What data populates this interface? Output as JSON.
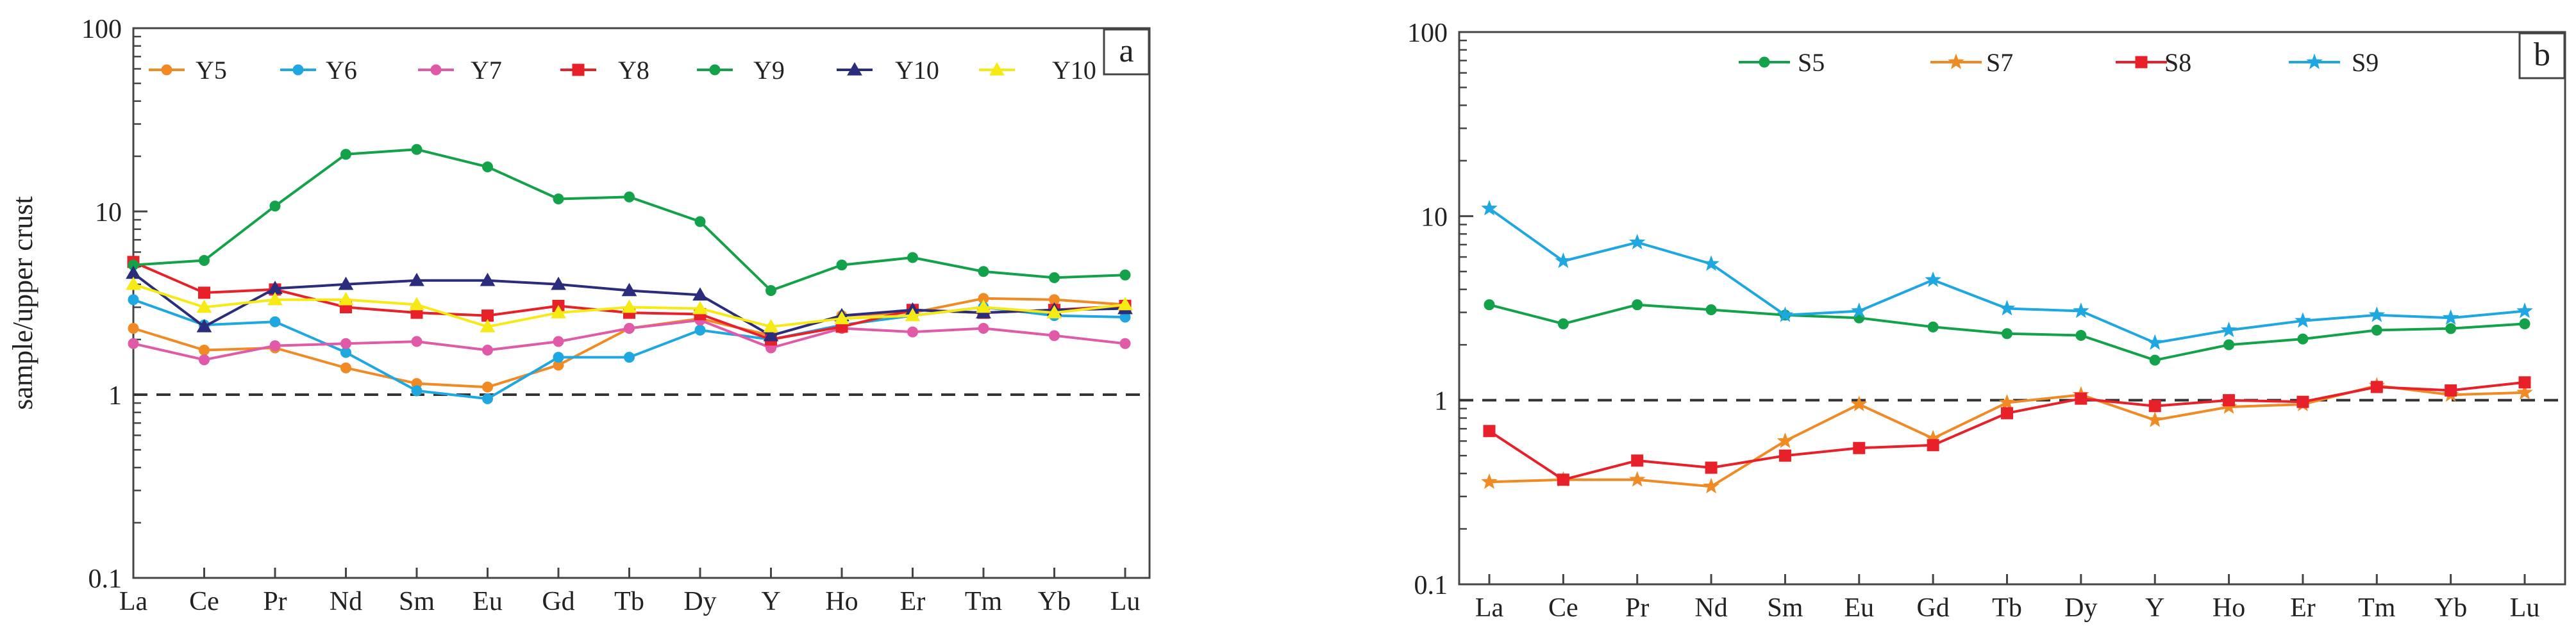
{
  "chart_data": [
    {
      "type": "line",
      "panel_label": "a",
      "ylabel": "sample/upper crust",
      "xlabel": "",
      "yscale": "log",
      "ylim": [
        0.1,
        100
      ],
      "y_tick_labels": [
        "0.1",
        "1",
        "10",
        "100"
      ],
      "y_ticks": [
        0.1,
        1,
        10,
        100
      ],
      "reference_line": 1,
      "categories": [
        "La",
        "Ce",
        "Pr",
        "Nd",
        "Sm",
        "Eu",
        "Gd",
        "Tb",
        "Dy",
        "Y",
        "Ho",
        "Er",
        "Tm",
        "Yb",
        "Lu"
      ],
      "legend_position": "top",
      "series": [
        {
          "name": "Y5",
          "color": "#f08a24",
          "marker": "circle",
          "values": [
            2.3,
            1.75,
            1.8,
            1.4,
            1.15,
            1.1,
            1.45,
            2.3,
            2.6,
            2.1,
            2.7,
            2.8,
            3.35,
            3.3,
            3.1
          ]
        },
        {
          "name": "Y6",
          "color": "#1ea7e1",
          "marker": "circle",
          "values": [
            3.3,
            2.4,
            2.5,
            1.7,
            1.05,
            0.95,
            1.6,
            1.6,
            2.25,
            2.0,
            2.4,
            2.7,
            3.0,
            2.7,
            2.65
          ]
        },
        {
          "name": "Y7",
          "color": "#e05aa8",
          "marker": "circle",
          "values": [
            1.9,
            1.55,
            1.85,
            1.9,
            1.95,
            1.75,
            1.95,
            2.3,
            2.55,
            1.8,
            2.3,
            2.2,
            2.3,
            2.1,
            1.9
          ]
        },
        {
          "name": "Y8",
          "color": "#e8202a",
          "marker": "square",
          "values": [
            5.3,
            3.6,
            3.75,
            3.0,
            2.8,
            2.7,
            3.05,
            2.8,
            2.75,
            2.0,
            2.35,
            2.9,
            2.8,
            2.9,
            3.05
          ]
        },
        {
          "name": "Y9",
          "color": "#13a24a",
          "marker": "circle",
          "values": [
            5.1,
            5.4,
            10.7,
            20.5,
            21.8,
            17.5,
            11.7,
            12.0,
            8.8,
            3.7,
            5.1,
            5.6,
            4.7,
            4.35,
            4.5
          ]
        },
        {
          "name": "Y10",
          "color": "#2b2c7c",
          "marker": "triangle",
          "values": [
            4.6,
            2.35,
            3.8,
            4.0,
            4.2,
            4.2,
            4.0,
            3.7,
            3.5,
            2.1,
            2.7,
            2.9,
            2.8,
            2.9,
            2.95
          ]
        },
        {
          "name": "Y10",
          "color": "#f5ea14",
          "marker": "triangle",
          "values": [
            4.0,
            3.0,
            3.3,
            3.3,
            3.1,
            2.35,
            2.8,
            3.0,
            2.95,
            2.35,
            2.6,
            2.7,
            3.0,
            2.8,
            3.1
          ]
        }
      ]
    },
    {
      "type": "line",
      "panel_label": "b",
      "ylabel": "",
      "xlabel": "",
      "yscale": "log",
      "ylim": [
        0.1,
        100
      ],
      "y_tick_labels": [
        "0.1",
        "1",
        "10",
        "100"
      ],
      "y_ticks": [
        0.1,
        1,
        10,
        100
      ],
      "reference_line": 1,
      "categories": [
        "La",
        "Ce",
        "Pr",
        "Nd",
        "Sm",
        "Eu",
        "Gd",
        "Tb",
        "Dy",
        "Y",
        "Ho",
        "Er",
        "Tm",
        "Yb",
        "Lu"
      ],
      "legend_position": "top",
      "series": [
        {
          "name": "S5",
          "color": "#13a24a",
          "marker": "circle",
          "values": [
            3.3,
            2.6,
            3.3,
            3.1,
            2.9,
            2.8,
            2.5,
            2.3,
            2.25,
            1.65,
            2.0,
            2.15,
            2.4,
            2.45,
            2.6
          ]
        },
        {
          "name": "S7",
          "color": "#f08a24",
          "marker": "star",
          "values": [
            0.36,
            0.37,
            0.37,
            0.34,
            0.6,
            0.95,
            0.62,
            0.97,
            1.07,
            0.78,
            0.92,
            0.95,
            1.2,
            1.07,
            1.1
          ]
        },
        {
          "name": "S8",
          "color": "#e8202a",
          "marker": "square",
          "values": [
            0.68,
            0.37,
            0.47,
            0.43,
            0.5,
            0.55,
            0.57,
            0.85,
            1.02,
            0.93,
            1.0,
            0.98,
            1.18,
            1.13,
            1.25
          ]
        },
        {
          "name": "S9",
          "color": "#1ea7e1",
          "marker": "star",
          "values": [
            11.0,
            5.7,
            7.2,
            5.5,
            2.9,
            3.05,
            4.5,
            3.15,
            3.05,
            2.05,
            2.4,
            2.7,
            2.9,
            2.8,
            3.05
          ]
        }
      ]
    }
  ]
}
